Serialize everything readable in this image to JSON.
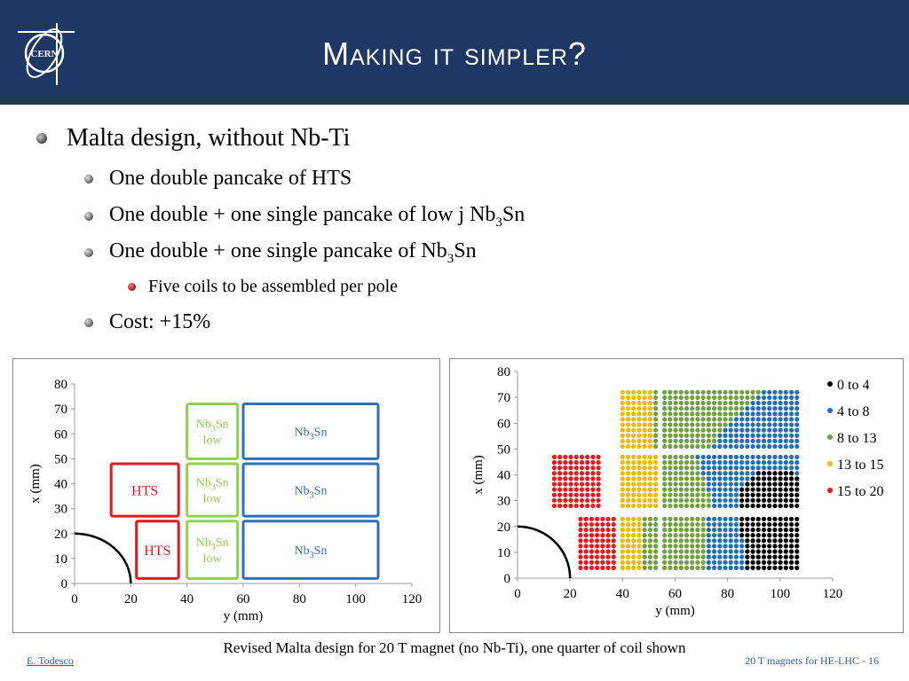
{
  "header": {
    "title": "Making it simpler?",
    "logo_text": "CERN",
    "logo_icon": "cern-logo",
    "background": "#1f3764"
  },
  "bullets": [
    {
      "level": 1,
      "text": "Malta design, without Nb-Ti"
    },
    {
      "level": 2,
      "text": "One double pancake of HTS"
    },
    {
      "level": 2,
      "pre": "One double + one single pancake of low j Nb",
      "sub": "3",
      "post": "Sn"
    },
    {
      "level": 2,
      "pre": "One double + one single pancake of Nb",
      "sub": "3",
      "post": "Sn"
    },
    {
      "level": 3,
      "text": "Five coils to be assembled per pole"
    },
    {
      "level": 2,
      "text": "Cost: +15%"
    }
  ],
  "chart_data": [
    {
      "type": "diagram",
      "xlabel": "y (mm)",
      "ylabel": "x (mm)",
      "xlim": [
        0,
        120
      ],
      "ylim": [
        0,
        80
      ],
      "xticks": [
        "0",
        "20",
        "40",
        "60",
        "80",
        "100",
        "120"
      ],
      "yticks": [
        "0",
        "10",
        "20",
        "30",
        "40",
        "50",
        "60",
        "70",
        "80"
      ],
      "aperture_radius": 20,
      "coils": [
        {
          "label": "HTS",
          "color": "#e0191f",
          "x": [
            22,
            37
          ],
          "y": [
            2,
            25
          ]
        },
        {
          "label": "HTS",
          "color": "#e0191f",
          "x": [
            13,
            37
          ],
          "y": [
            27,
            48
          ]
        },
        {
          "label": "Nb3Sn low",
          "color": "#8fd14f",
          "x": [
            40,
            58
          ],
          "y": [
            2,
            25
          ]
        },
        {
          "label": "Nb3Sn low",
          "color": "#8fd14f",
          "x": [
            40,
            58
          ],
          "y": [
            27,
            48
          ]
        },
        {
          "label": "Nb3Sn low",
          "color": "#8fd14f",
          "x": [
            40,
            58
          ],
          "y": [
            50,
            72
          ]
        },
        {
          "label": "Nb3Sn",
          "color": "#2f6fb5",
          "x": [
            60,
            108
          ],
          "y": [
            2,
            25
          ]
        },
        {
          "label": "Nb3Sn",
          "color": "#2f6fb5",
          "x": [
            60,
            108
          ],
          "y": [
            27,
            48
          ]
        },
        {
          "label": "Nb3Sn",
          "color": "#2f6fb5",
          "x": [
            60,
            108
          ],
          "y": [
            50,
            72
          ]
        }
      ]
    },
    {
      "type": "scatter",
      "xlabel": "y (mm)",
      "ylabel": "x (mm)",
      "xlim": [
        0,
        120
      ],
      "ylim": [
        0,
        80
      ],
      "xticks": [
        "0",
        "20",
        "40",
        "60",
        "80",
        "100",
        "120"
      ],
      "yticks": [
        "0",
        "10",
        "20",
        "30",
        "40",
        "50",
        "60",
        "70",
        "80"
      ],
      "aperture_radius": 20,
      "legend_position": "right",
      "series": [
        {
          "name": "0 to 4",
          "color": "#000000"
        },
        {
          "name": "4 to 8",
          "color": "#1f6fbf"
        },
        {
          "name": "8 to 13",
          "color": "#70a040"
        },
        {
          "name": "13 to 15",
          "color": "#f5b800"
        },
        {
          "name": "15 to 20",
          "color": "#e8191c"
        }
      ],
      "blocks": [
        {
          "x": [
            13,
            32
          ],
          "y": [
            27,
            47
          ]
        },
        {
          "x": [
            23,
            37
          ],
          "y": [
            3,
            24
          ]
        },
        {
          "x": [
            39,
            53
          ],
          "y": [
            3,
            24
          ]
        },
        {
          "x": [
            39,
            53
          ],
          "y": [
            27,
            47
          ]
        },
        {
          "x": [
            39,
            53
          ],
          "y": [
            50,
            72
          ]
        },
        {
          "x": [
            55,
            108
          ],
          "y": [
            3,
            24
          ]
        },
        {
          "x": [
            55,
            108
          ],
          "y": [
            27,
            47
          ]
        },
        {
          "x": [
            55,
            108
          ],
          "y": [
            50,
            72
          ]
        }
      ]
    }
  ],
  "caption": "Revised Malta design for 20 T magnet (no Nb-Ti), one quarter of coil shown",
  "footer": {
    "author": "E. Todesco",
    "right": "20 T magnets for HE-LHC - 16"
  }
}
